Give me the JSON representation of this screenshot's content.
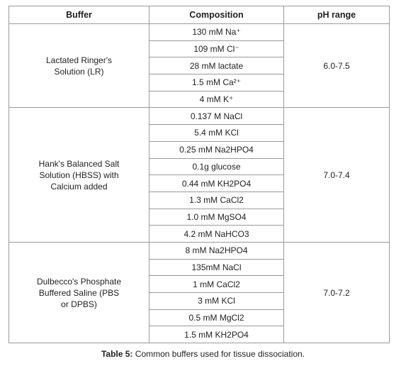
{
  "table": {
    "header": [
      "Buffer",
      "Composition",
      "pH range"
    ],
    "groups": [
      {
        "buffer": "Lactated Ringer's Solution (LR)",
        "composition": [
          "130 mM Na⁺",
          "109 mM Cl⁻",
          "28 mM lactate",
          "1.5 mM Ca²⁺",
          "4 mM K⁺"
        ],
        "ph": "6.0-7.5"
      },
      {
        "buffer": "Hank's Balanced Salt Solution (HBSS) with Calcium added",
        "composition": [
          "0.137 M NaCl",
          "5.4 mM KCl",
          "0.25 mM Na2HPO4",
          "0.1g glucose",
          "0.44 mM KH2PO4",
          "1.3 mM CaCl2",
          "1.0 mM MgSO4",
          "4.2 mM NaHCO3"
        ],
        "ph": "7.0-7.4"
      },
      {
        "buffer": "Dulbecco's Phosphate Buffered Saline (PBS or DPBS)",
        "composition": [
          "8 mM Na2HPO4",
          "135mM NaCl",
          "1 mM CaCl2",
          "3 mM KCl",
          "0.5 mM MgCl2",
          "1.5 mM KH2PO4"
        ],
        "ph": "7.0-7.2"
      }
    ]
  },
  "caption": {
    "label": "Table 5:",
    "text": "Common buffers used for tissue dissociation."
  }
}
